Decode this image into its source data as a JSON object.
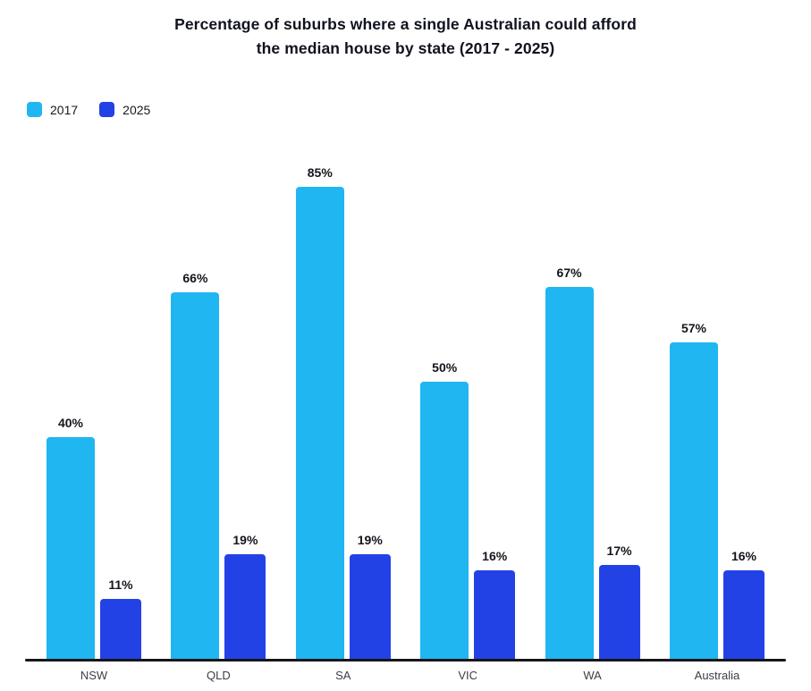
{
  "chart_data": {
    "type": "bar",
    "title": "Percentage of suburbs where a single Australian could afford the median house by state (2017 - 2025)",
    "categories": [
      "NSW",
      "QLD",
      "SA",
      "VIC",
      "WA",
      "Australia"
    ],
    "series": [
      {
        "name": "2017",
        "color": "#1FB6F2",
        "values": [
          40,
          66,
          85,
          50,
          67,
          57
        ]
      },
      {
        "name": "2025",
        "color": "#2342E6",
        "values": [
          11,
          19,
          19,
          16,
          17,
          16
        ]
      }
    ],
    "value_suffix": "%",
    "ylim": [
      0,
      90
    ],
    "grid": false,
    "legend_position": "top-left",
    "axis_line_color": "#15151a",
    "text_color": "#10121f"
  }
}
